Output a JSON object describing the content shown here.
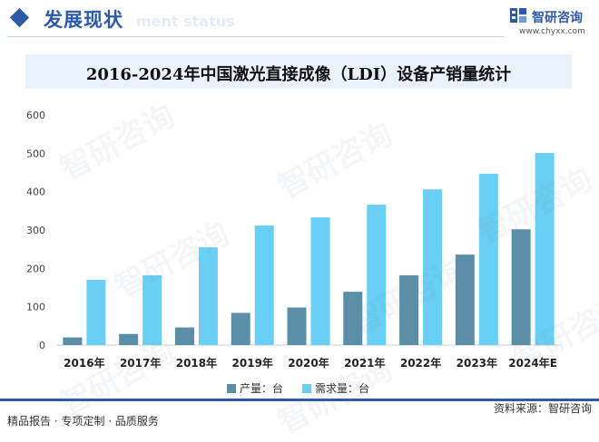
{
  "header": {
    "section_title": "发展现状",
    "section_subtitle": "ment status",
    "brand_name": "智研咨询",
    "brand_url": "www.chyxx.com"
  },
  "watermark": {
    "text": "智研咨询"
  },
  "chart_data": {
    "type": "bar",
    "title": "2016-2024年中国激光直接成像（LDI）设备产销量统计",
    "xlabel": "",
    "ylabel": "",
    "categories": [
      "2016年",
      "2017年",
      "2018年",
      "2019年",
      "2020年",
      "2021年",
      "2022年",
      "2023年",
      "2024年E"
    ],
    "series": [
      {
        "name": "产量：台",
        "color": "#5b8fa8",
        "values": [
          20,
          29,
          46,
          84,
          98,
          139,
          182,
          236,
          302
        ]
      },
      {
        "name": "需求量：台",
        "color": "#69cff4",
        "values": [
          170,
          182,
          255,
          312,
          333,
          366,
          406,
          447,
          501
        ]
      }
    ],
    "ylim": [
      0,
      600
    ],
    "yticks": [
      0,
      100,
      200,
      300,
      400,
      500,
      600
    ],
    "grid": false,
    "legend_position": "bottom"
  },
  "footer": {
    "left": "精品报告 · 专项定制 · 品质服务",
    "right": "资料来源：智研咨询"
  }
}
